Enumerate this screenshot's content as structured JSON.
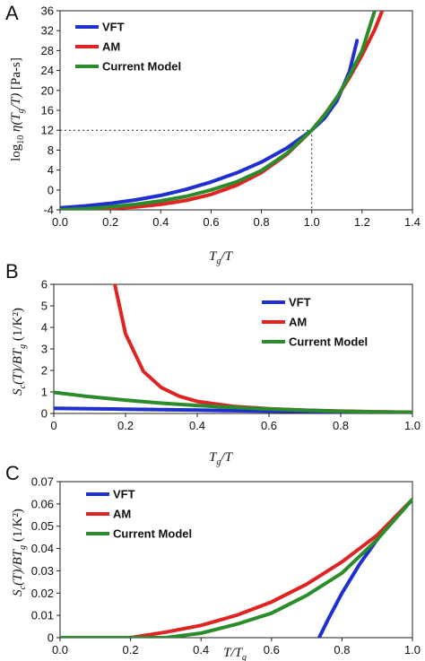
{
  "chart_data": [
    {
      "type": "line",
      "panel": "A",
      "xlabel": "Tg/T",
      "ylabel": "log10 η(Tg/T) [Pa-s]",
      "xlim": [
        0.0,
        1.4
      ],
      "ylim": [
        -4,
        36
      ],
      "xticks": [
        "0.0",
        "0.2",
        "0.4",
        "0.6",
        "0.8",
        "1.0",
        "1.2",
        "1.4"
      ],
      "yticks": [
        "-4",
        "0",
        "4",
        "8",
        "12",
        "16",
        "20",
        "24",
        "28",
        "32",
        "36"
      ],
      "legend_position": "top-left",
      "reference_point": {
        "x": 1.0,
        "y": 12
      },
      "series": [
        {
          "name": "VFT",
          "color": "#1f2fd0",
          "x": [
            0.0,
            0.1,
            0.2,
            0.3,
            0.4,
            0.5,
            0.6,
            0.7,
            0.8,
            0.9,
            1.0,
            1.05,
            1.1,
            1.15,
            1.18
          ],
          "y": [
            -3.6,
            -3.2,
            -2.7,
            -2.0,
            -1.1,
            0.1,
            1.6,
            3.4,
            5.6,
            8.4,
            12.0,
            14.4,
            17.9,
            23.8,
            30.0
          ]
        },
        {
          "name": "AM",
          "color": "#e02424",
          "x": [
            0.0,
            0.1,
            0.2,
            0.3,
            0.4,
            0.5,
            0.6,
            0.7,
            0.8,
            0.9,
            1.0,
            1.05,
            1.1,
            1.15,
            1.2,
            1.25,
            1.28
          ],
          "y": [
            -4.0,
            -3.9,
            -3.7,
            -3.4,
            -2.9,
            -2.1,
            -0.9,
            0.9,
            3.5,
            7.1,
            12.0,
            15.1,
            18.6,
            22.6,
            27.1,
            32.2,
            36.0
          ]
        },
        {
          "name": "Current Model",
          "color": "#2a8c2a",
          "x": [
            0.0,
            0.1,
            0.2,
            0.3,
            0.4,
            0.5,
            0.6,
            0.7,
            0.8,
            0.9,
            1.0,
            1.05,
            1.1,
            1.15,
            1.2,
            1.25
          ],
          "y": [
            -4.0,
            -3.8,
            -3.4,
            -2.9,
            -2.2,
            -1.3,
            0.0,
            1.6,
            3.9,
            7.3,
            12.0,
            15.0,
            18.6,
            23.0,
            28.0,
            36.0
          ]
        }
      ]
    },
    {
      "type": "line",
      "panel": "B",
      "xlabel": "Tg/T",
      "ylabel": "Sc(T)/BTg (1/K²)",
      "xlim": [
        0.0,
        1.0
      ],
      "ylim": [
        0,
        6
      ],
      "xticks": [
        "0",
        "0.2",
        "0.4",
        "0.6",
        "0.8",
        "1.0"
      ],
      "yticks": [
        "0",
        "1",
        "2",
        "3",
        "4",
        "5",
        "6"
      ],
      "legend_position": "top-right",
      "series": [
        {
          "name": "VFT",
          "color": "#1f2fd0",
          "x": [
            0.0,
            0.1,
            0.2,
            0.3,
            0.4,
            0.5,
            0.6,
            0.7,
            0.8,
            0.9,
            1.0
          ],
          "y": [
            0.24,
            0.22,
            0.2,
            0.18,
            0.16,
            0.13,
            0.11,
            0.09,
            0.07,
            0.05,
            0.03
          ]
        },
        {
          "name": "AM",
          "color": "#e02424",
          "x": [
            0.17,
            0.2,
            0.25,
            0.3,
            0.35,
            0.4,
            0.5,
            0.6,
            0.7,
            0.8,
            0.9,
            1.0
          ],
          "y": [
            6.0,
            3.7,
            1.95,
            1.2,
            0.8,
            0.56,
            0.33,
            0.22,
            0.15,
            0.11,
            0.08,
            0.06
          ]
        },
        {
          "name": "Current Model",
          "color": "#2a8c2a",
          "x": [
            0.0,
            0.1,
            0.2,
            0.3,
            0.4,
            0.5,
            0.6,
            0.7,
            0.8,
            0.9,
            1.0
          ],
          "y": [
            0.98,
            0.78,
            0.62,
            0.48,
            0.37,
            0.28,
            0.21,
            0.15,
            0.1,
            0.07,
            0.05
          ]
        }
      ]
    },
    {
      "type": "line",
      "panel": "C",
      "xlabel": "T/Tg",
      "ylabel": "Sc(T)/BTg (1/K²)",
      "xlim": [
        0.0,
        1.0
      ],
      "ylim": [
        0,
        0.07
      ],
      "xticks": [
        "0.0",
        "0.2",
        "0.4",
        "0.6",
        "0.8",
        "1.0"
      ],
      "yticks": [
        "0",
        "0.01",
        "0.02",
        "0.03",
        "0.04",
        "0.05",
        "0.06",
        "0.07"
      ],
      "legend_position": "top-left",
      "series": [
        {
          "name": "VFT",
          "color": "#1f2fd0",
          "x": [
            0.735,
            0.76,
            0.8,
            0.85,
            0.9,
            0.95,
            1.0
          ],
          "y": [
            0.0,
            0.008,
            0.02,
            0.033,
            0.044,
            0.054,
            0.062
          ]
        },
        {
          "name": "AM",
          "color": "#e02424",
          "x": [
            0.0,
            0.2,
            0.3,
            0.4,
            0.5,
            0.6,
            0.7,
            0.8,
            0.9,
            1.0
          ],
          "y": [
            0.0,
            0.0,
            0.0025,
            0.0055,
            0.01,
            0.016,
            0.024,
            0.034,
            0.046,
            0.062
          ]
        },
        {
          "name": "Current Model",
          "color": "#2a8c2a",
          "x": [
            0.0,
            0.3,
            0.4,
            0.5,
            0.6,
            0.7,
            0.8,
            0.9,
            1.0
          ],
          "y": [
            0.0,
            0.0,
            0.002,
            0.006,
            0.011,
            0.019,
            0.029,
            0.044,
            0.062
          ]
        }
      ]
    }
  ]
}
